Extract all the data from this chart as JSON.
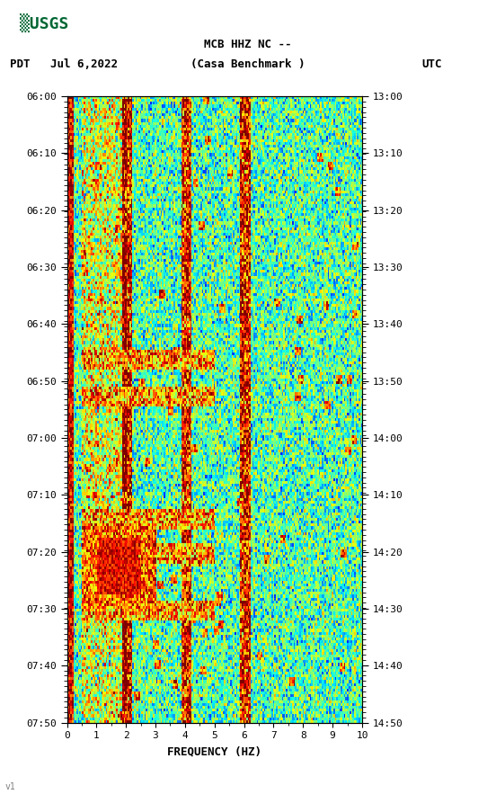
{
  "title_line1": "MCB HHZ NC --",
  "title_line2": "(Casa Benchmark )",
  "left_label": "PDT   Jul 6,2022",
  "right_label": "UTC",
  "freq_min": 0,
  "freq_max": 10,
  "xlabel": "FREQUENCY (HZ)",
  "ytick_labels_left": [
    "06:00",
    "06:10",
    "06:20",
    "06:30",
    "06:40",
    "06:50",
    "07:00",
    "07:10",
    "07:20",
    "07:30",
    "07:40",
    "07:50"
  ],
  "ytick_labels_right": [
    "13:00",
    "13:10",
    "13:20",
    "13:30",
    "13:40",
    "13:50",
    "14:00",
    "14:10",
    "14:20",
    "14:30",
    "14:40",
    "14:50"
  ],
  "colormap": "jet",
  "background_color": "#ffffff",
  "spectrogram_seed": 42,
  "fig_width": 5.52,
  "fig_height": 8.93,
  "dpi": 100
}
